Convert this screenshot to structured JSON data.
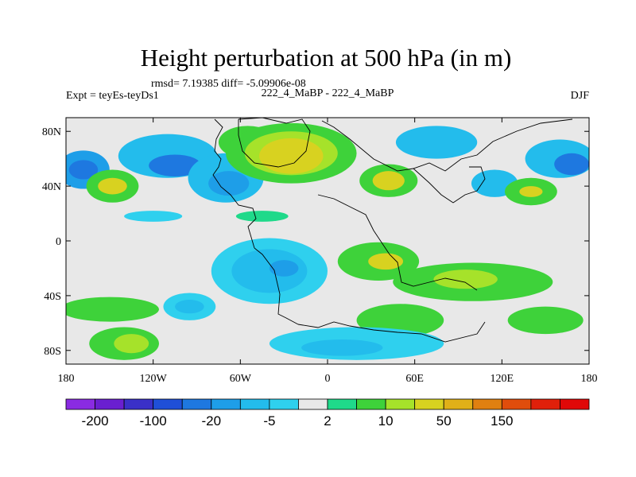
{
  "chart_data": {
    "type": "heatmap",
    "title": "Height perturbation at 500 hPa (in m)",
    "stats_text": "rmsd= 7.19385 diff= -5.09906e-08",
    "left_label": "Expt = teyEs-teyDs1",
    "center_label": "222_4_MaBP - 222_4_MaBP",
    "right_label": "DJF",
    "x_ticks": [
      {
        "value": -180,
        "label": "180"
      },
      {
        "value": -120,
        "label": "120W"
      },
      {
        "value": -60,
        "label": "60W"
      },
      {
        "value": 0,
        "label": "0"
      },
      {
        "value": 60,
        "label": "60E"
      },
      {
        "value": 120,
        "label": "120E"
      },
      {
        "value": 180,
        "label": "180"
      }
    ],
    "y_ticks": [
      {
        "value": 80,
        "label": "80N"
      },
      {
        "value": 40,
        "label": "40N"
      },
      {
        "value": 0,
        "label": "0"
      },
      {
        "value": -40,
        "label": "40S"
      },
      {
        "value": -80,
        "label": "80S"
      }
    ],
    "xlim": [
      -180,
      180
    ],
    "ylim": [
      -90,
      90
    ],
    "colorbar": {
      "colors": [
        "#8a2be2",
        "#6a1fd0",
        "#3a30c8",
        "#1f4fd8",
        "#1e78e0",
        "#1e9ee8",
        "#23bcec",
        "#2fd0ee",
        "#e8e8e8",
        "#1fd98a",
        "#3ed23a",
        "#a6e22a",
        "#d8d220",
        "#e0b018",
        "#e08010",
        "#e04d0c",
        "#e0200a",
        "#e00808"
      ],
      "labels": [
        {
          "boundary": 1,
          "text": "-200"
        },
        {
          "boundary": 3,
          "text": "-100"
        },
        {
          "boundary": 5,
          "text": "-20"
        },
        {
          "boundary": 7,
          "text": "-5"
        },
        {
          "boundary": 9,
          "text": "2"
        },
        {
          "boundary": 11,
          "text": "10"
        },
        {
          "boundary": 13,
          "text": "50"
        },
        {
          "boundary": 15,
          "text": "150"
        }
      ]
    },
    "field_blobs": [
      {
        "cx": -168,
        "cy": 52,
        "rx": 18,
        "ry": 14,
        "level": 5
      },
      {
        "cx": -168,
        "cy": 52,
        "rx": 10,
        "ry": 7,
        "level": 4
      },
      {
        "cx": -148,
        "cy": 40,
        "rx": 18,
        "ry": 12,
        "level": 10
      },
      {
        "cx": -148,
        "cy": 40,
        "rx": 10,
        "ry": 6,
        "level": 12
      },
      {
        "cx": -110,
        "cy": 62,
        "rx": 34,
        "ry": 16,
        "level": 6
      },
      {
        "cx": -105,
        "cy": 55,
        "rx": 18,
        "ry": 8,
        "level": 4
      },
      {
        "cx": -70,
        "cy": 46,
        "rx": 26,
        "ry": 18,
        "level": 6
      },
      {
        "cx": -68,
        "cy": 42,
        "rx": 14,
        "ry": 9,
        "level": 5
      },
      {
        "cx": -55,
        "cy": 72,
        "rx": 20,
        "ry": 12,
        "level": 10
      },
      {
        "cx": -25,
        "cy": 64,
        "rx": 45,
        "ry": 22,
        "level": 10
      },
      {
        "cx": -25,
        "cy": 64,
        "rx": 32,
        "ry": 16,
        "level": 11
      },
      {
        "cx": -25,
        "cy": 62,
        "rx": 22,
        "ry": 13,
        "level": 12
      },
      {
        "cx": 42,
        "cy": 44,
        "rx": 20,
        "ry": 12,
        "level": 10
      },
      {
        "cx": 42,
        "cy": 44,
        "rx": 11,
        "ry": 7,
        "level": 12
      },
      {
        "cx": 75,
        "cy": 72,
        "rx": 28,
        "ry": 12,
        "level": 6
      },
      {
        "cx": 115,
        "cy": 42,
        "rx": 16,
        "ry": 10,
        "level": 6
      },
      {
        "cx": 140,
        "cy": 36,
        "rx": 18,
        "ry": 10,
        "level": 10
      },
      {
        "cx": 140,
        "cy": 36,
        "rx": 8,
        "ry": 4,
        "level": 12
      },
      {
        "cx": 160,
        "cy": 60,
        "rx": 24,
        "ry": 14,
        "level": 6
      },
      {
        "cx": 168,
        "cy": 56,
        "rx": 12,
        "ry": 8,
        "level": 4
      },
      {
        "cx": -120,
        "cy": 18,
        "rx": 20,
        "ry": 4,
        "level": 7
      },
      {
        "cx": -45,
        "cy": 18,
        "rx": 18,
        "ry": 4,
        "level": 9
      },
      {
        "cx": -40,
        "cy": -22,
        "rx": 40,
        "ry": 24,
        "level": 7
      },
      {
        "cx": -40,
        "cy": -22,
        "rx": 26,
        "ry": 16,
        "level": 6
      },
      {
        "cx": -30,
        "cy": -20,
        "rx": 10,
        "ry": 6,
        "level": 5
      },
      {
        "cx": 35,
        "cy": -15,
        "rx": 28,
        "ry": 14,
        "level": 10
      },
      {
        "cx": 40,
        "cy": -15,
        "rx": 12,
        "ry": 6,
        "level": 12
      },
      {
        "cx": 100,
        "cy": -30,
        "rx": 55,
        "ry": 14,
        "level": 10
      },
      {
        "cx": 95,
        "cy": -28,
        "rx": 22,
        "ry": 7,
        "level": 11
      },
      {
        "cx": -150,
        "cy": -50,
        "rx": 34,
        "ry": 9,
        "level": 10
      },
      {
        "cx": -95,
        "cy": -48,
        "rx": 18,
        "ry": 10,
        "level": 7
      },
      {
        "cx": -95,
        "cy": -48,
        "rx": 10,
        "ry": 5,
        "level": 6
      },
      {
        "cx": 50,
        "cy": -58,
        "rx": 30,
        "ry": 12,
        "level": 10
      },
      {
        "cx": 150,
        "cy": -58,
        "rx": 26,
        "ry": 10,
        "level": 10
      },
      {
        "cx": -140,
        "cy": -75,
        "rx": 24,
        "ry": 12,
        "level": 10
      },
      {
        "cx": -135,
        "cy": -75,
        "rx": 12,
        "ry": 7,
        "level": 11
      },
      {
        "cx": 20,
        "cy": -75,
        "rx": 60,
        "ry": 12,
        "level": 7
      },
      {
        "cx": 10,
        "cy": -78,
        "rx": 28,
        "ry": 6,
        "level": 6
      }
    ]
  }
}
